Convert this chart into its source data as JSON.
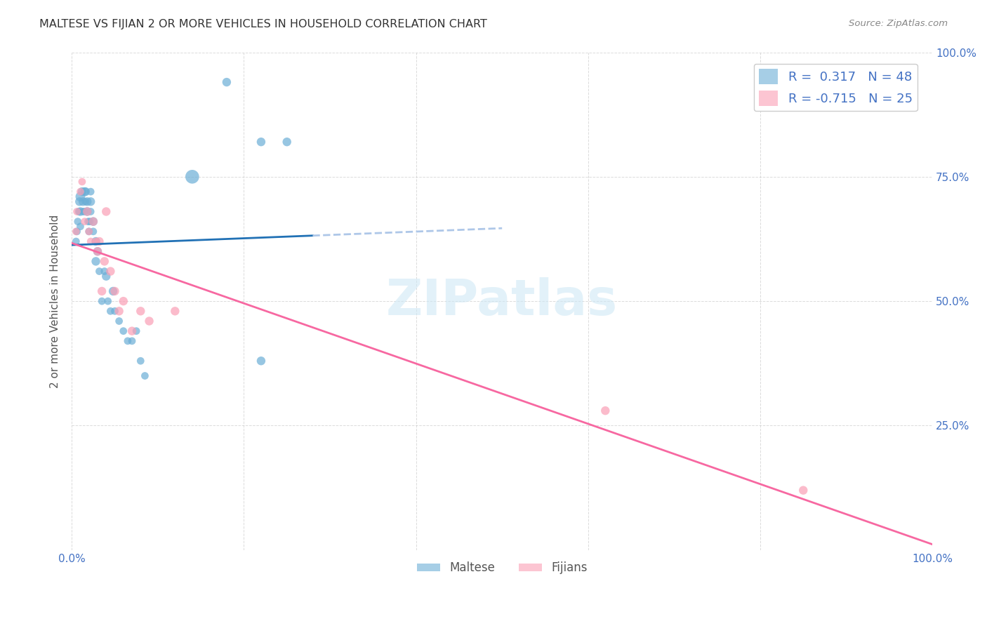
{
  "title": "MALTESE VS FIJIAN 2 OR MORE VEHICLES IN HOUSEHOLD CORRELATION CHART",
  "source": "Source: ZipAtlas.com",
  "ylabel": "2 or more Vehicles in Household",
  "xlim": [
    0.0,
    1.0
  ],
  "ylim": [
    0.0,
    1.0
  ],
  "ytick_values": [
    0.0,
    0.25,
    0.5,
    0.75,
    1.0
  ],
  "xtick_values": [
    0.0,
    0.2,
    0.4,
    0.6,
    0.8,
    1.0
  ],
  "legend_maltese_R": "0.317",
  "legend_maltese_N": "48",
  "legend_fijian_R": "-0.715",
  "legend_fijian_N": "25",
  "maltese_color": "#6baed6",
  "fijian_color": "#fa9fb5",
  "maltese_line_color": "#2171b5",
  "fijian_line_color": "#f768a1",
  "trend_dash_color": "#aec7e8",
  "background_color": "#ffffff",
  "maltese_scatter": {
    "x": [
      0.005,
      0.006,
      0.007,
      0.008,
      0.009,
      0.01,
      0.01,
      0.01,
      0.012,
      0.013,
      0.013,
      0.015,
      0.015,
      0.016,
      0.016,
      0.018,
      0.018,
      0.019,
      0.02,
      0.021,
      0.022,
      0.022,
      0.022,
      0.025,
      0.025,
      0.028,
      0.028,
      0.03,
      0.032,
      0.035,
      0.038,
      0.04,
      0.042,
      0.045,
      0.048,
      0.05,
      0.055,
      0.06,
      0.065,
      0.07,
      0.075,
      0.08,
      0.085,
      0.14,
      0.18,
      0.22,
      0.25,
      0.22
    ],
    "y": [
      0.62,
      0.64,
      0.66,
      0.68,
      0.7,
      0.71,
      0.68,
      0.65,
      0.72,
      0.7,
      0.68,
      0.72,
      0.68,
      0.72,
      0.7,
      0.7,
      0.68,
      0.66,
      0.64,
      0.66,
      0.7,
      0.68,
      0.72,
      0.64,
      0.66,
      0.62,
      0.58,
      0.6,
      0.56,
      0.5,
      0.56,
      0.55,
      0.5,
      0.48,
      0.52,
      0.48,
      0.46,
      0.44,
      0.42,
      0.42,
      0.44,
      0.38,
      0.35,
      0.75,
      0.94,
      0.82,
      0.82,
      0.38
    ],
    "sizes": [
      60,
      60,
      60,
      60,
      80,
      100,
      80,
      60,
      80,
      80,
      60,
      80,
      60,
      80,
      60,
      80,
      80,
      60,
      60,
      60,
      80,
      60,
      60,
      60,
      80,
      80,
      80,
      80,
      60,
      60,
      60,
      80,
      60,
      60,
      80,
      60,
      60,
      60,
      60,
      60,
      60,
      60,
      60,
      200,
      80,
      80,
      80,
      80
    ]
  },
  "fijian_scatter": {
    "x": [
      0.005,
      0.006,
      0.01,
      0.012,
      0.015,
      0.018,
      0.02,
      0.022,
      0.025,
      0.028,
      0.03,
      0.032,
      0.035,
      0.038,
      0.04,
      0.045,
      0.05,
      0.055,
      0.06,
      0.07,
      0.08,
      0.09,
      0.12,
      0.62,
      0.85
    ],
    "y": [
      0.64,
      0.68,
      0.72,
      0.74,
      0.66,
      0.68,
      0.64,
      0.62,
      0.66,
      0.62,
      0.6,
      0.62,
      0.52,
      0.58,
      0.68,
      0.56,
      0.52,
      0.48,
      0.5,
      0.44,
      0.48,
      0.46,
      0.48,
      0.28,
      0.12
    ],
    "sizes": [
      60,
      60,
      60,
      60,
      60,
      80,
      60,
      60,
      80,
      60,
      80,
      80,
      80,
      80,
      80,
      80,
      80,
      80,
      80,
      80,
      80,
      80,
      80,
      80,
      80
    ]
  }
}
